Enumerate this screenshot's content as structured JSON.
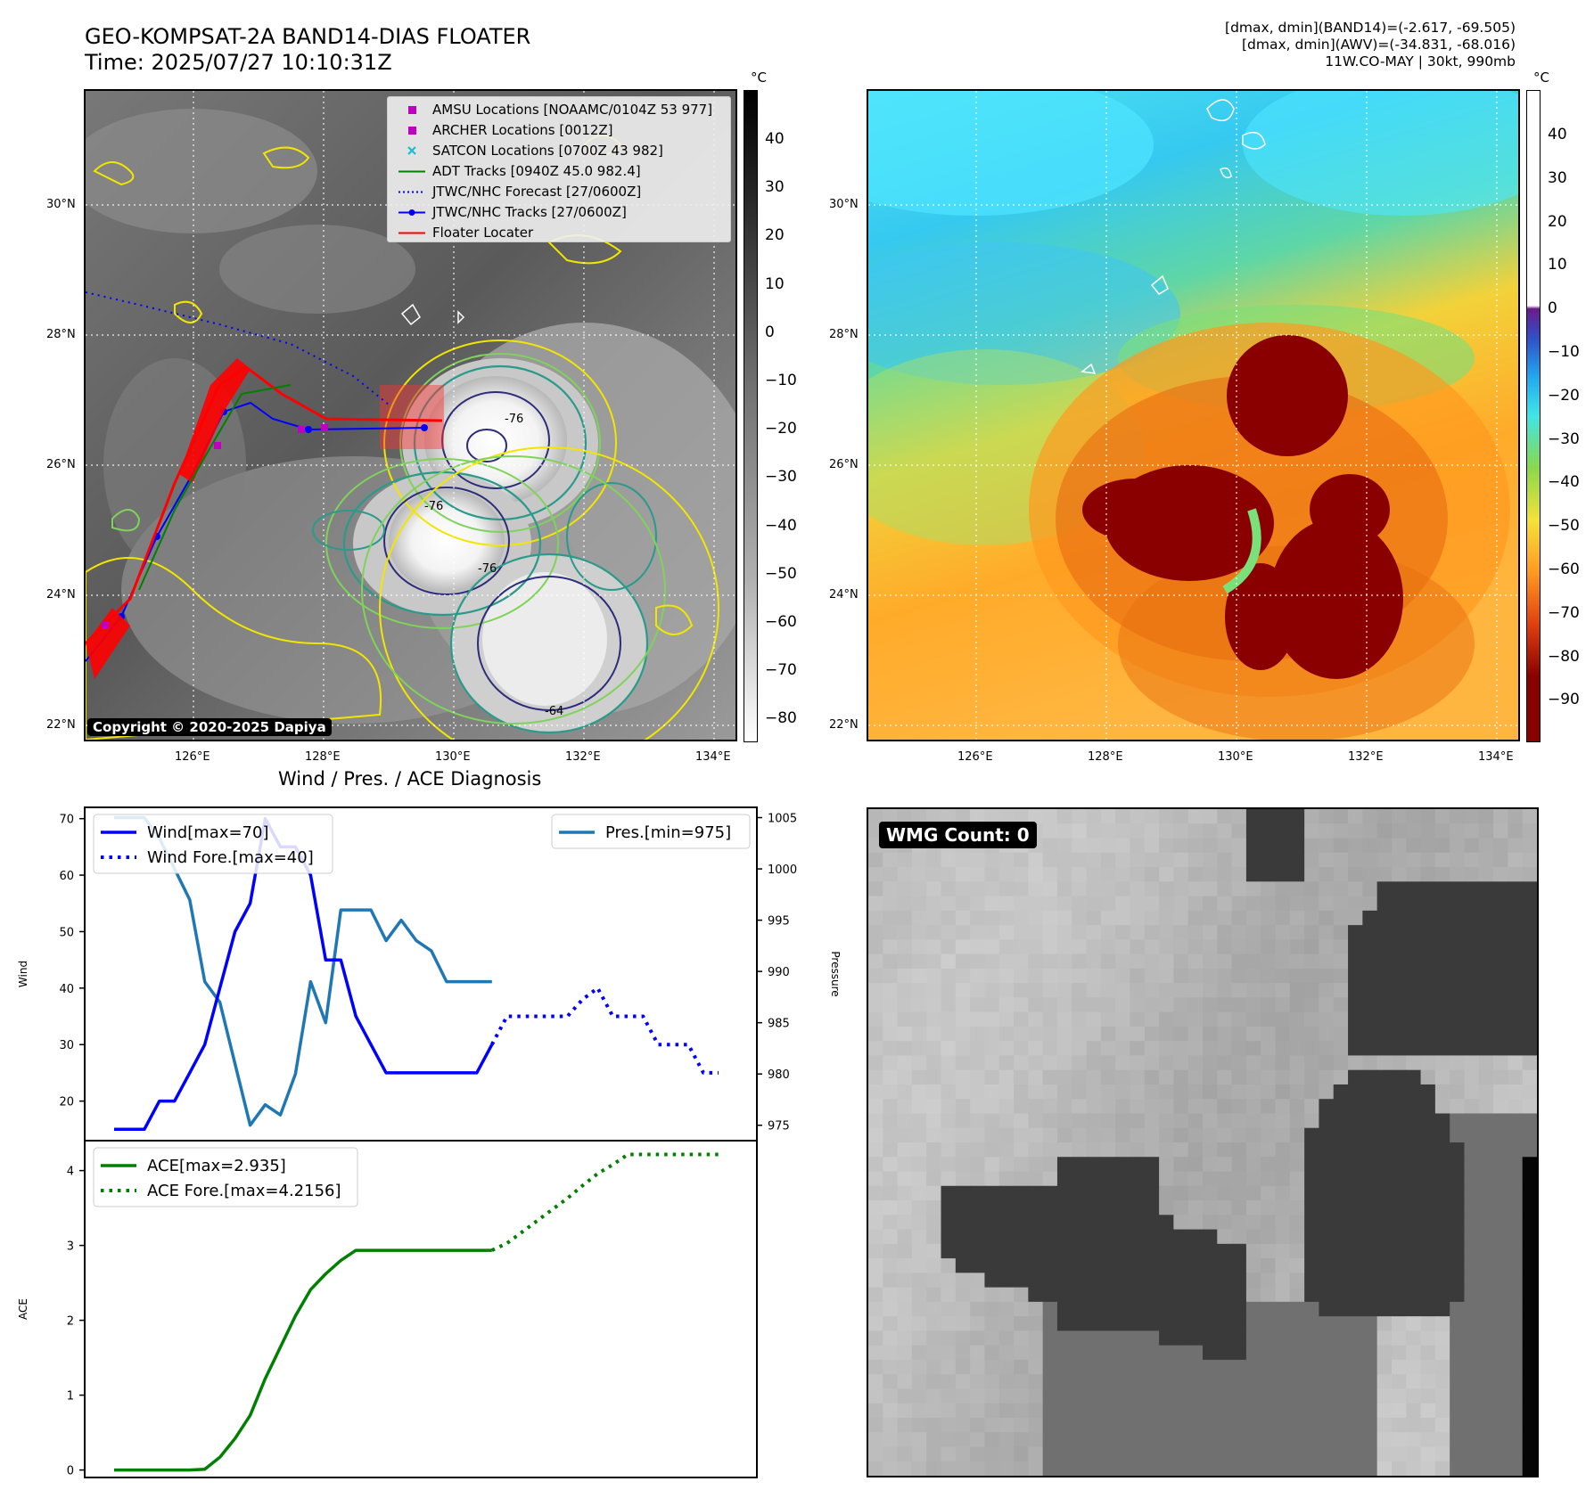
{
  "header": {
    "title_line1": "GEO-KOMPSAT-2A BAND14-DIAS FLOATER",
    "title_line2": "Time: 2025/07/27 10:10:31Z",
    "info_line1": "[dmax, dmin](BAND14)=(-2.617, -69.505)",
    "info_line2": "[dmax, dmin](AWV)=(-34.831, -68.016)",
    "info_line3": "11W.CO-MAY | 30kt, 990mb"
  },
  "ir_map": {
    "lat_labels": [
      "30°N",
      "28°N",
      "26°N",
      "24°N",
      "22°N"
    ],
    "lon_labels": [
      "126°E",
      "128°E",
      "130°E",
      "132°E",
      "134°E"
    ],
    "copyright": "Copyright © 2020-2025 Dapiya",
    "contour_labels": [
      "-76",
      "-76",
      "-76",
      "-64"
    ],
    "legend": [
      {
        "label": "AMSU Locations [NOAAMC/0104Z 53 977]",
        "color": "#c000c0",
        "marker": "square"
      },
      {
        "label": "ARCHER Locations [0012Z]",
        "color": "#c000c0",
        "marker": "square"
      },
      {
        "label": "SATCON Locations [0700Z 43 982]",
        "color": "#17becf",
        "marker": "x"
      },
      {
        "label": "ADT Tracks [0940Z 45.0 982.4]",
        "color": "#008000",
        "marker": "line"
      },
      {
        "label": "JTWC/NHC Forecast [27/0600Z]",
        "color": "#0000ff",
        "marker": "dotted"
      },
      {
        "label": "JTWC/NHC Tracks [27/0600Z]",
        "color": "#0000ff",
        "marker": "line-dot"
      },
      {
        "label": "Floater Locater",
        "color": "#ff0000",
        "marker": "line"
      }
    ],
    "colorbar_unit": "°C",
    "colorbar_ticks": [
      "40",
      "30",
      "20",
      "10",
      "0",
      "−10",
      "−20",
      "−30",
      "−40",
      "−50",
      "−60",
      "−70",
      "−80"
    ]
  },
  "wv_map": {
    "lat_labels": [
      "30°N",
      "28°N",
      "26°N",
      "24°N",
      "22°N"
    ],
    "lon_labels": [
      "126°E",
      "128°E",
      "130°E",
      "132°E",
      "134°E"
    ],
    "colorbar_unit": "°C",
    "colorbar_ticks": [
      "40",
      "30",
      "20",
      "10",
      "0",
      "−10",
      "−20",
      "−30",
      "−40",
      "−50",
      "−60",
      "−70",
      "−80",
      "−90"
    ]
  },
  "wmg_panel": {
    "badge": "WMG Count: 0"
  },
  "chart_data": [
    {
      "type": "line",
      "title": "Wind / Pres. / ACE Diagnosis",
      "ylabel": "Wind",
      "ylim": [
        13,
        72
      ],
      "yticks": [
        20,
        30,
        40,
        50,
        60,
        70
      ],
      "x_range": [
        0,
        40
      ],
      "series": [
        {
          "name": "Wind[max=70]",
          "style": "solid",
          "color": "#0000ff",
          "x": [
            0,
            1,
            2,
            3,
            4,
            5,
            6,
            7,
            8,
            9,
            10,
            11,
            12,
            13,
            14,
            15,
            16,
            17,
            18,
            19,
            20,
            21,
            22,
            23,
            24,
            25
          ],
          "values": [
            15,
            15,
            15,
            20,
            20,
            25,
            30,
            40,
            50,
            55,
            70,
            65,
            65,
            60,
            45,
            45,
            35,
            30,
            25,
            25,
            25,
            25,
            25,
            25,
            25,
            30
          ]
        },
        {
          "name": "Wind Fore.[max=40]",
          "style": "dotted",
          "color": "#0000ff",
          "x": [
            25,
            26,
            27,
            28,
            29,
            30,
            31,
            32,
            33,
            34,
            35,
            36,
            37,
            38,
            39,
            40
          ],
          "values": [
            30,
            35,
            35,
            35,
            35,
            35,
            38,
            40,
            35,
            35,
            35,
            30,
            30,
            30,
            25,
            25
          ]
        }
      ],
      "ylabel_right": "Pressure",
      "ylim_right": [
        973.5,
        1006
      ],
      "yticks_right": [
        975,
        980,
        985,
        990,
        995,
        1000,
        1005
      ],
      "series_right": [
        {
          "name": "Pres.[min=975]",
          "color": "#1f77b4",
          "x": [
            0,
            1,
            2,
            3,
            4,
            5,
            6,
            7,
            8,
            9,
            10,
            11,
            12,
            13,
            14,
            15,
            16,
            17,
            18,
            19,
            20,
            21,
            22,
            23,
            24,
            25
          ],
          "values": [
            1005,
            1005,
            1005,
            1003,
            1000,
            997,
            989,
            987,
            981,
            975,
            977,
            976,
            980,
            989,
            985,
            996,
            996,
            996,
            993,
            995,
            993,
            992,
            989,
            989,
            989,
            989
          ]
        }
      ]
    },
    {
      "type": "line",
      "ylabel": "ACE",
      "ylim": [
        -0.1,
        4.4
      ],
      "yticks": [
        0,
        1,
        2,
        3,
        4
      ],
      "x_range": [
        0,
        40
      ],
      "series": [
        {
          "name": "ACE[max=2.935]",
          "style": "solid",
          "color": "#008000",
          "x": [
            0,
            1,
            2,
            3,
            4,
            5,
            6,
            7,
            8,
            9,
            10,
            11,
            12,
            13,
            14,
            15,
            16,
            17,
            18,
            19,
            20,
            21,
            22,
            23,
            24,
            25
          ],
          "values": [
            0,
            0,
            0,
            0,
            0,
            0,
            0.01,
            0.17,
            0.42,
            0.73,
            1.22,
            1.64,
            2.06,
            2.41,
            2.62,
            2.8,
            2.935,
            2.935,
            2.935,
            2.935,
            2.935,
            2.935,
            2.935,
            2.935,
            2.935,
            2.935
          ]
        },
        {
          "name": "ACE Fore.[max=4.2156]",
          "style": "dotted",
          "color": "#008000",
          "x": [
            25,
            26,
            27,
            28,
            29,
            30,
            31,
            32,
            33,
            34,
            35,
            36,
            37,
            38,
            39,
            40
          ],
          "values": [
            2.935,
            3.03,
            3.18,
            3.33,
            3.48,
            3.63,
            3.8,
            3.96,
            4.08,
            4.2156,
            4.2156,
            4.2156,
            4.2156,
            4.2156,
            4.2156,
            4.2156
          ]
        }
      ]
    }
  ]
}
